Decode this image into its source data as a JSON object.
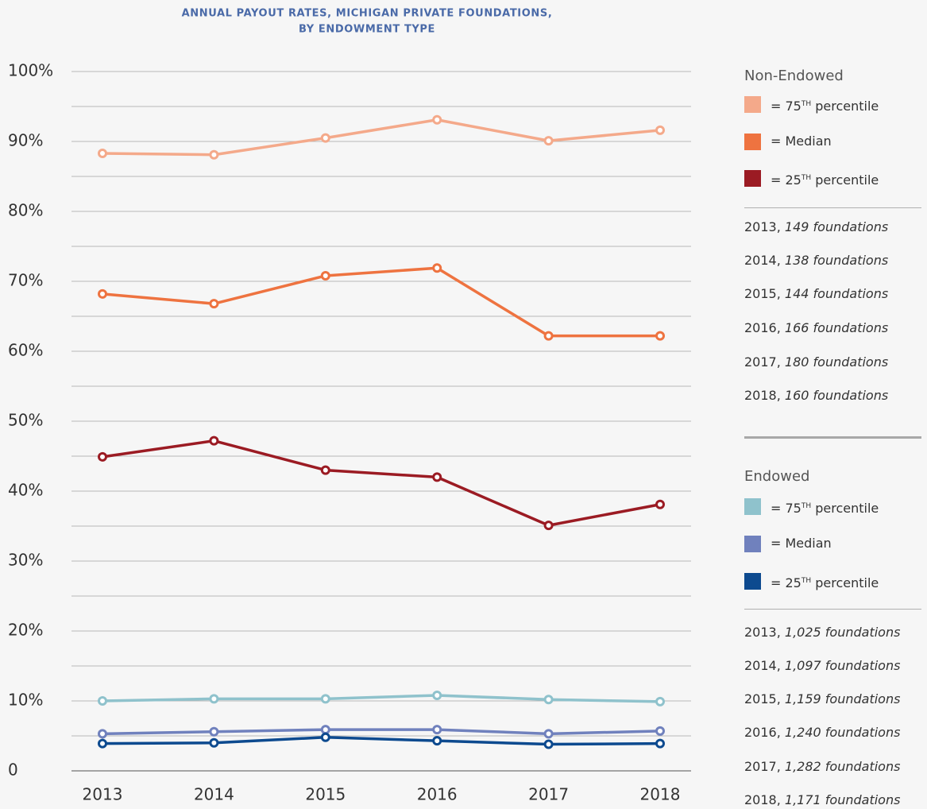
{
  "chart_data": {
    "type": "line",
    "title": [
      "ANNUAL PAYOUT RATES, MICHIGAN PRIVATE FOUNDATIONS,",
      "BY ENDOWMENT TYPE"
    ],
    "categories": [
      "2013",
      "2014",
      "2015",
      "2016",
      "2017",
      "2018"
    ],
    "ylim": [
      0,
      100
    ],
    "yticks": [
      0,
      {
        "value": 10,
        "label": "10%"
      },
      {
        "value": 20,
        "label": "20%"
      },
      {
        "value": 30,
        "label": "30%"
      },
      {
        "value": 40,
        "label": "40%"
      },
      {
        "value": 50,
        "label": "50%"
      },
      {
        "value": 60,
        "label": "60%"
      },
      {
        "value": 70,
        "label": "70%"
      },
      {
        "value": 80,
        "label": "80%"
      },
      {
        "value": 90,
        "label": "90%"
      },
      {
        "value": 100,
        "label": "100%"
      }
    ],
    "minor_yticks": [
      5,
      15,
      25,
      35,
      45,
      55,
      65,
      75,
      85,
      95
    ],
    "grid": true,
    "groups": [
      {
        "title": "Non-Endowed",
        "series": [
          {
            "name": "= 75TH percentile",
            "color": "#f4a98a",
            "values": [
              88.3,
              88.1,
              90.5,
              93.1,
              90.1,
              91.6
            ]
          },
          {
            "name": "= Median",
            "color": "#ee7340",
            "values": [
              68.2,
              66.8,
              70.8,
              71.9,
              62.2,
              62.2
            ]
          },
          {
            "name": "= 25TH percentile",
            "color": "#9b1b23",
            "values": [
              44.9,
              47.2,
              43.0,
              42.0,
              35.1,
              38.1
            ]
          }
        ],
        "counts": [
          {
            "text": "2013,",
            "italic": "149 foundations"
          },
          {
            "text": "2014,",
            "italic": "138 foundations"
          },
          {
            "text": "2015,",
            "italic": "144 foundations"
          },
          {
            "text": "2016,",
            "italic": "166 foundations"
          },
          {
            "text": "2017,",
            "italic": "180 foundations"
          },
          {
            "text": "2018,",
            "italic": "160 foundations"
          }
        ]
      },
      {
        "title": "Endowed",
        "series": [
          {
            "name": "= 75TH percentile",
            "color": "#8fc2cc",
            "values": [
              10.0,
              10.3,
              10.3,
              10.8,
              10.2,
              9.9
            ]
          },
          {
            "name": "= Median",
            "color": "#7081bd",
            "values": [
              5.3,
              5.6,
              5.9,
              5.9,
              5.3,
              5.7
            ]
          },
          {
            "name": "= 25TH percentile",
            "color": "#0d4a8f",
            "values": [
              3.9,
              4.0,
              4.8,
              4.3,
              3.8,
              3.9
            ]
          }
        ],
        "counts": [
          {
            "text": "2013,",
            "italic": "1,025 foundations"
          },
          {
            "text": "2014,",
            "italic": "1,097 foundations"
          },
          {
            "text": "2015,",
            "italic": "1,159 foundations"
          },
          {
            "text": "2016,",
            "italic": "1,240 foundations"
          },
          {
            "text": "2017,",
            "italic": "1,282 foundations"
          },
          {
            "text": "2018,",
            "italic": "1,171 foundations"
          }
        ]
      }
    ]
  }
}
